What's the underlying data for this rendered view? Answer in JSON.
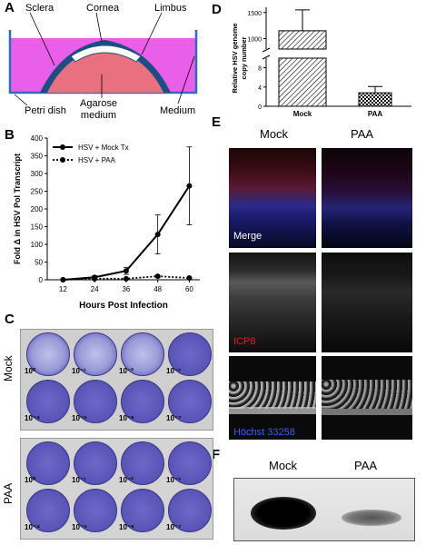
{
  "panels": {
    "a": "A",
    "b": "B",
    "c": "C",
    "d": "D",
    "e": "E",
    "f": "F"
  },
  "panel_a": {
    "labels": {
      "sclera": "Sclera",
      "cornea": "Cornea",
      "limbus": "Limbus",
      "petri": "Petri dish",
      "agarose": "Agarose\nmedium",
      "medium": "Medium"
    },
    "colors": {
      "medium": "#ea5fea",
      "agarose": "#e9707f",
      "cornea_ring": "#1b4f82",
      "sclera": "#4c6fa6"
    }
  },
  "panel_b": {
    "chart_data": {
      "type": "line",
      "x": [
        12,
        24,
        36,
        48,
        60
      ],
      "series": [
        {
          "name": "HSV + Mock Tx",
          "values": [
            0,
            7,
            25,
            128,
            265
          ],
          "err": [
            0,
            4,
            10,
            55,
            110
          ],
          "style": "solid"
        },
        {
          "name": "HSV + PAA",
          "values": [
            0,
            3,
            3,
            10,
            5
          ],
          "err": [
            0,
            1,
            1,
            3,
            2
          ],
          "style": "dotted"
        }
      ],
      "xlabel": "Hours Post Infection",
      "ylabel": "Fold Δ in HSV Pol Transcript",
      "ylim": [
        0,
        400
      ],
      "yticks": [
        0,
        50,
        100,
        150,
        200,
        250,
        300,
        350,
        400
      ],
      "xticks": [
        12,
        24,
        36,
        48,
        60
      ],
      "legend": "top-left"
    }
  },
  "panel_c": {
    "mock_label": "Mock",
    "paa_label": "PAA",
    "mock_dilutions": [
      "10⁰",
      "10⁻¹",
      "10⁻²",
      "10⁻³",
      "10⁻⁴",
      "10⁻⁵",
      "10⁻⁶",
      "10⁻⁷"
    ],
    "paa_dilutions": [
      "10⁰",
      "10⁻¹",
      "10⁻²",
      "10⁻³",
      "10⁻⁴",
      "10⁻⁵",
      "10⁻⁶",
      "10⁻⁷"
    ],
    "well_color": "#5a55b8"
  },
  "panel_d": {
    "chart_data": {
      "type": "bar",
      "categories": [
        "Mock",
        "PAA"
      ],
      "values": [
        1150,
        2.8
      ],
      "err": [
        400,
        1.3
      ],
      "ylabel": "Relative HSV genome\ncopy number",
      "yticks_top": [
        1000,
        1500
      ],
      "yticks_bottom": [
        0,
        4,
        8
      ],
      "ylim_top": [
        800,
        1600
      ],
      "ylim_bottom": [
        0,
        10
      ],
      "axis_break": true,
      "patterns": [
        "hatched",
        "checkered"
      ]
    }
  },
  "panel_e": {
    "col_mock": "Mock",
    "col_paa": "PAA",
    "row_labels": [
      "Merge",
      "ICP8",
      "Höchst 33258"
    ]
  },
  "panel_f": {
    "mock": "Mock",
    "paa": "PAA"
  }
}
